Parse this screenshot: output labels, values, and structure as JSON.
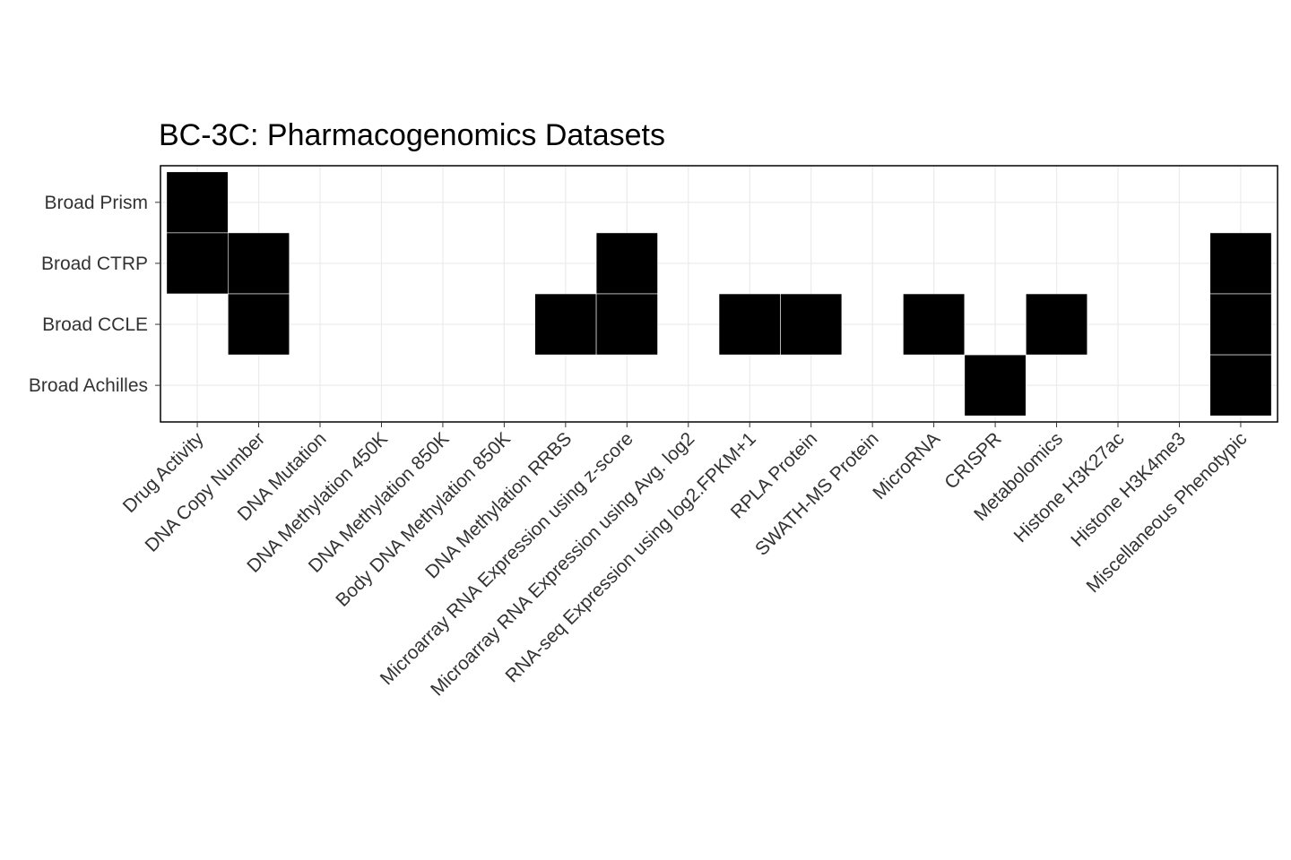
{
  "chart_data": {
    "type": "heatmap",
    "title": "BC-3C: Pharmacogenomics Datasets",
    "xlabel": "",
    "ylabel": "",
    "grid": true,
    "legend": "none",
    "fill_color": "#000000",
    "x_categories": [
      "Drug Activity",
      "DNA Copy Number",
      "DNA Mutation",
      "DNA Methylation 450K",
      "DNA Methylation 850K",
      "Body DNA Methylation 850K",
      "DNA Methylation RRBS",
      "Microarray RNA Expression using z-score",
      "Microarray RNA Expression using Avg. log2",
      "RNA-seq Expression using log2.FPKM+1",
      "RPLA Protein",
      "SWATH-MS Protein",
      "MicroRNA",
      "CRISPR",
      "Metabolomics",
      "Histone H3K27ac",
      "Histone H3K4me3",
      "Miscellaneous Phenotypic"
    ],
    "y_categories": [
      "Broad Prism",
      "Broad CTRP",
      "Broad CCLE",
      "Broad Achilles"
    ],
    "present": [
      {
        "x": "Drug Activity",
        "y": "Broad Prism"
      },
      {
        "x": "Drug Activity",
        "y": "Broad CTRP"
      },
      {
        "x": "DNA Copy Number",
        "y": "Broad CTRP"
      },
      {
        "x": "Microarray RNA Expression using z-score",
        "y": "Broad CTRP"
      },
      {
        "x": "Miscellaneous Phenotypic",
        "y": "Broad CTRP"
      },
      {
        "x": "DNA Copy Number",
        "y": "Broad CCLE"
      },
      {
        "x": "DNA Methylation RRBS",
        "y": "Broad CCLE"
      },
      {
        "x": "Microarray RNA Expression using z-score",
        "y": "Broad CCLE"
      },
      {
        "x": "RNA-seq Expression using log2.FPKM+1",
        "y": "Broad CCLE"
      },
      {
        "x": "RPLA Protein",
        "y": "Broad CCLE"
      },
      {
        "x": "MicroRNA",
        "y": "Broad CCLE"
      },
      {
        "x": "Metabolomics",
        "y": "Broad CCLE"
      },
      {
        "x": "Miscellaneous Phenotypic",
        "y": "Broad CCLE"
      },
      {
        "x": "CRISPR",
        "y": "Broad Achilles"
      },
      {
        "x": "Miscellaneous Phenotypic",
        "y": "Broad Achilles"
      }
    ]
  }
}
